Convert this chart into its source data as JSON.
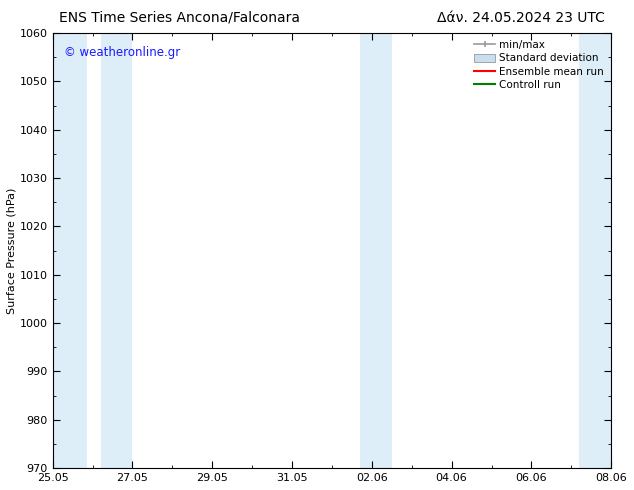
{
  "title_left": "ENS Time Series Ancona/Falconara",
  "title_right": "Δάν. 24.05.2024 23 UTC",
  "ylabel": "Surface Pressure (hPa)",
  "ylim": [
    970,
    1060
  ],
  "yticks": [
    970,
    980,
    990,
    1000,
    1010,
    1020,
    1030,
    1040,
    1050,
    1060
  ],
  "x_start": 0,
  "x_end": 14,
  "xtick_labels": [
    "25.05",
    "27.05",
    "29.05",
    "31.05",
    "02.06",
    "04.06",
    "06.06",
    "08.06"
  ],
  "xtick_positions": [
    0,
    2,
    4,
    6,
    8,
    10,
    12,
    14
  ],
  "watermark": "© weatheronline.gr",
  "watermark_color": "#1a1aff",
  "background_color": "#ffffff",
  "plot_bg_color": "#ffffff",
  "shaded_bands": [
    {
      "x_start": 0.0,
      "x_end": 0.85,
      "color": "#ddeef8"
    },
    {
      "x_start": 1.2,
      "x_end": 2.0,
      "color": "#ddeef8"
    },
    {
      "x_start": 7.7,
      "x_end": 8.5,
      "color": "#ddeef8"
    },
    {
      "x_start": 13.2,
      "x_end": 14.0,
      "color": "#ddeef8"
    }
  ],
  "legend_entries": [
    {
      "label": "min/max",
      "color": "#aaaaaa",
      "style": "errorbar"
    },
    {
      "label": "Standard deviation",
      "color": "#c8dff0",
      "style": "rect"
    },
    {
      "label": "Ensemble mean run",
      "color": "#ff0000",
      "style": "line"
    },
    {
      "label": "Controll run",
      "color": "#008000",
      "style": "line"
    }
  ],
  "title_fontsize": 10,
  "axis_label_fontsize": 8,
  "tick_fontsize": 8,
  "legend_fontsize": 7.5,
  "watermark_fontsize": 8.5
}
